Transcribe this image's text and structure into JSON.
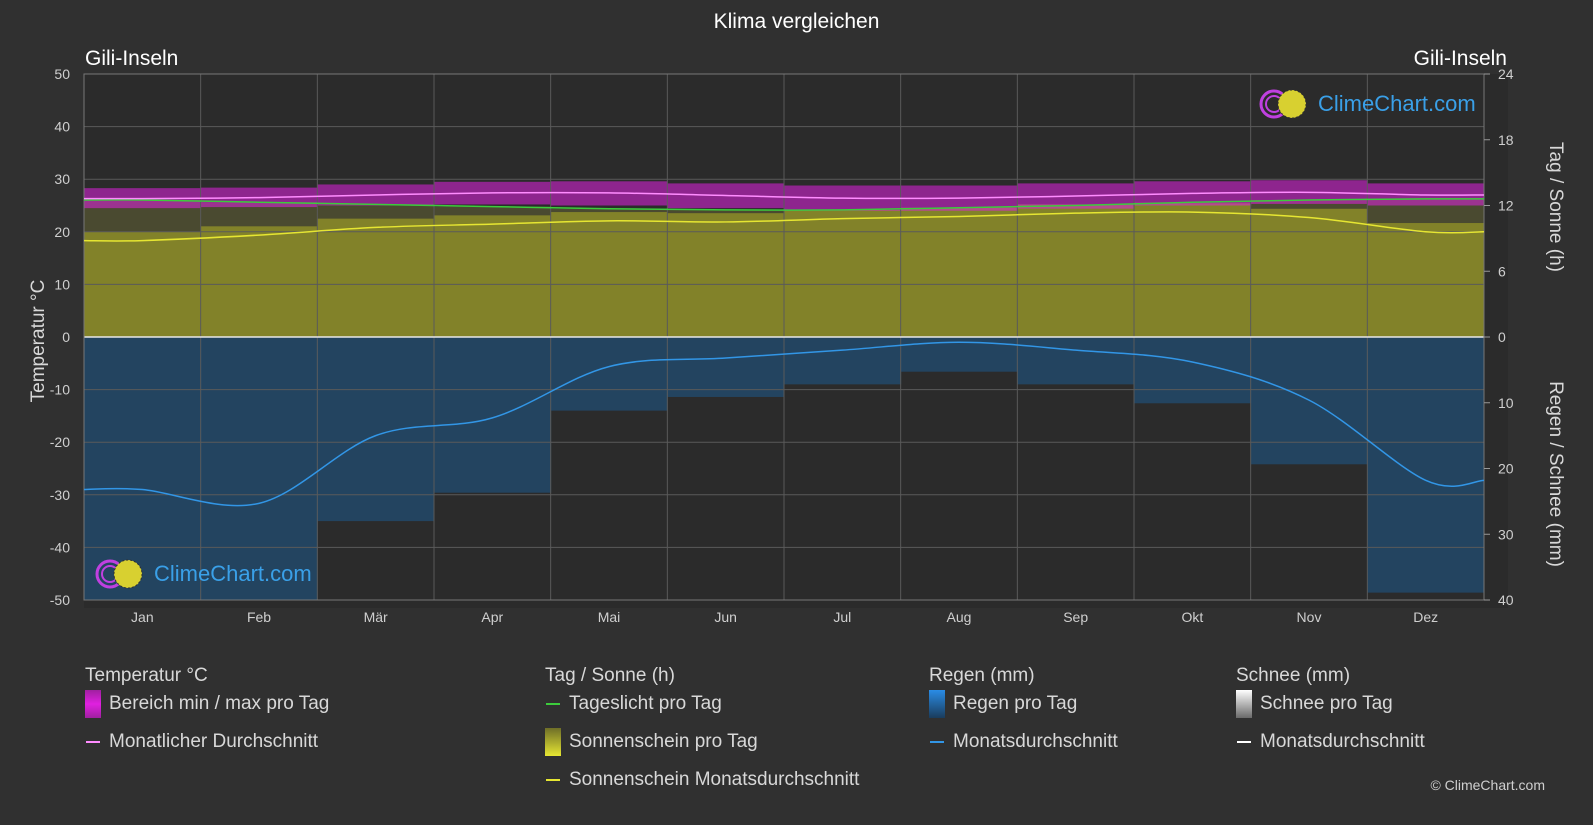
{
  "title": "Klima vergleichen",
  "location_left": "Gili-Inseln",
  "location_right": "Gili-Inseln",
  "logo_text": "ClimeChart.com",
  "copyright": "© ClimeChart.com",
  "colors": {
    "background": "#303030",
    "temp_range": "#e020e0",
    "temp_avg": "#ff8cff",
    "daylight": "#3ccc3c",
    "sunshine_fill": "#8c8c28",
    "sunshine_avg": "#e6e632",
    "rain_fill": "#1e5a8c",
    "rain_avg": "#3296e6",
    "snow_avg": "#ffffff"
  },
  "legend": {
    "temp": {
      "title": "Temperatur °C",
      "range": "Bereich min / max pro Tag",
      "avg": "Monatlicher Durchschnitt"
    },
    "sun": {
      "title": "Tag / Sonne (h)",
      "daylight": "Tageslicht pro Tag",
      "sunshine": "Sonnenschein pro Tag",
      "sunshine_avg": "Sonnenschein Monatsdurchschnitt"
    },
    "rain": {
      "title": "Regen (mm)",
      "per_day": "Regen pro Tag",
      "avg": "Monatsdurchschnitt"
    },
    "snow": {
      "title": "Schnee (mm)",
      "per_day": "Schnee pro Tag",
      "avg": "Monatsdurchschnitt"
    }
  },
  "chart_data": {
    "type": "line",
    "title": "Klima vergleichen",
    "categories": [
      "Jan",
      "Feb",
      "Mär",
      "Apr",
      "Mai",
      "Jun",
      "Jul",
      "Aug",
      "Sep",
      "Okt",
      "Nov",
      "Dez"
    ],
    "y_left": {
      "label": "Temperatur °C",
      "range": [
        -50,
        50
      ],
      "ticks": [
        50,
        40,
        30,
        20,
        10,
        0,
        -10,
        -20,
        -30,
        -40,
        -50
      ]
    },
    "y_right_top": {
      "label": "Tag / Sonne (h)",
      "range": [
        0,
        24
      ],
      "ticks": [
        24,
        18,
        12,
        6,
        0
      ]
    },
    "y_right_bottom": {
      "label": "Regen / Schnee (mm)",
      "range": [
        0,
        40
      ],
      "ticks": [
        0,
        10,
        20,
        30,
        40
      ]
    },
    "grid": true,
    "series": [
      {
        "name": "Monatlicher Durchschnitt",
        "unit": "°C",
        "values": [
          26.3,
          26.5,
          27.0,
          27.4,
          27.4,
          26.9,
          26.4,
          26.4,
          26.8,
          27.3,
          27.5,
          27.0
        ]
      },
      {
        "name": "Bereich min / max pro Tag (min)",
        "unit": "°C",
        "values": [
          24.5,
          24.7,
          25.0,
          25.2,
          25.0,
          24.5,
          24.0,
          24.0,
          24.4,
          25.0,
          25.3,
          25.0
        ]
      },
      {
        "name": "Bereich min / max pro Tag (max)",
        "unit": "°C",
        "values": [
          28.3,
          28.4,
          29.0,
          29.5,
          29.6,
          29.2,
          28.8,
          28.8,
          29.2,
          29.6,
          29.8,
          29.2
        ]
      },
      {
        "name": "Tageslicht pro Tag",
        "unit": "h",
        "values": [
          12.5,
          12.3,
          12.1,
          11.9,
          11.7,
          11.6,
          11.6,
          11.8,
          12.0,
          12.3,
          12.5,
          12.6
        ]
      },
      {
        "name": "Sonnenschein Monatsdurchschnitt",
        "unit": "h",
        "values": [
          8.8,
          9.3,
          10.0,
          10.3,
          10.6,
          10.5,
          10.8,
          11.0,
          11.3,
          11.4,
          10.9,
          9.6
        ]
      },
      {
        "name": "Regen Monatsdurchschnitt",
        "unit": "mm",
        "values": [
          23.2,
          25.3,
          15.0,
          12.3,
          4.5,
          3.2,
          2.0,
          0.8,
          2.0,
          3.8,
          9.6,
          21.8
        ]
      }
    ]
  }
}
